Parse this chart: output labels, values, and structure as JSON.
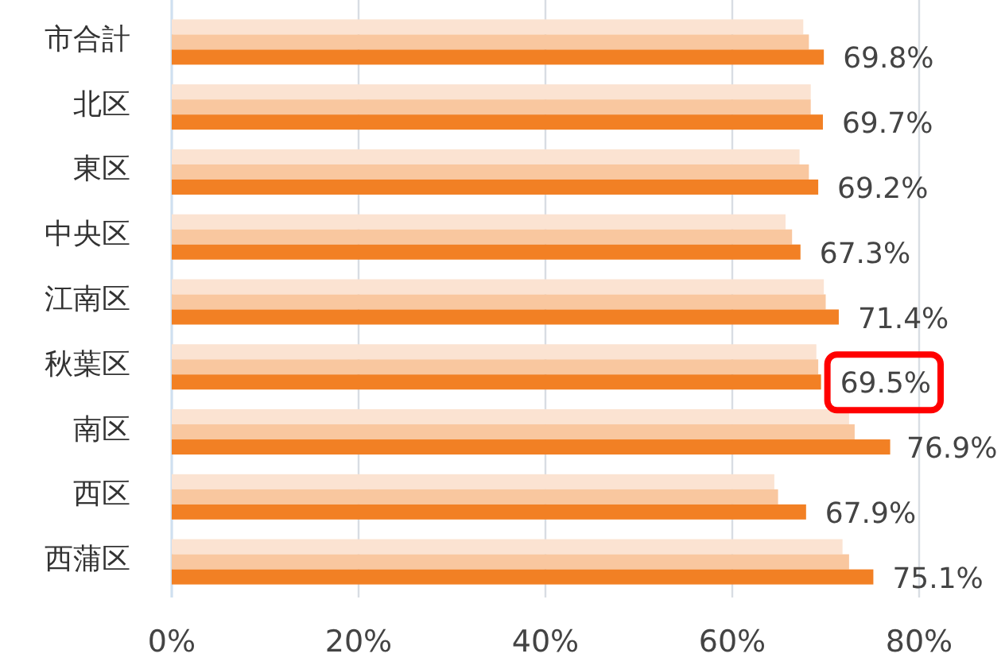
{
  "chart_data": {
    "type": "bar",
    "orientation": "horizontal",
    "categories": [
      "市合計",
      "北区",
      "東区",
      "中央区",
      "江南区",
      "秋葉区",
      "南区",
      "西区",
      "西蒲区"
    ],
    "series": [
      {
        "color": "#fbe3d2",
        "values": [
          67.6,
          68.4,
          67.2,
          65.7,
          69.8,
          69.0,
          72.5,
          64.5,
          71.8
        ]
      },
      {
        "color": "#f9c79f",
        "values": [
          68.2,
          68.4,
          68.2,
          66.4,
          70.0,
          69.2,
          73.1,
          64.9,
          72.5
        ]
      },
      {
        "color": "#f28024",
        "values": [
          69.8,
          69.7,
          69.2,
          67.3,
          71.4,
          69.5,
          76.9,
          67.9,
          75.1
        ],
        "value_labels": [
          "69.8%",
          "69.7%",
          "69.2%",
          "67.3%",
          "71.4%",
          "69.5%",
          "76.9%",
          "67.9%",
          "75.1%"
        ]
      }
    ],
    "xlim": [
      0,
      80
    ],
    "xticks": [
      {
        "value": 0,
        "label": "0%"
      },
      {
        "value": 20,
        "label": "20%"
      },
      {
        "value": 40,
        "label": "40%"
      },
      {
        "value": 60,
        "label": "60%"
      },
      {
        "value": 80,
        "label": "80%"
      }
    ],
    "grid": "x"
  }
}
